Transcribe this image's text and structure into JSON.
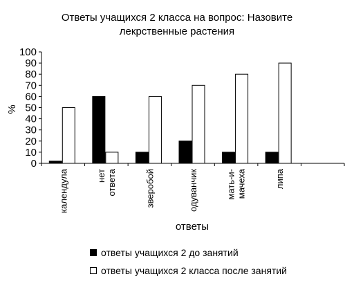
{
  "chart_data": {
    "type": "bar",
    "title": "Ответы учащихся 2 класса на вопрос: Назовите лекрственные растения",
    "title_lines": [
      "Ответы учащихся 2 класса на вопрос: Назовите",
      "лекрственные растения"
    ],
    "xlabel": "ответы",
    "ylabel": "%",
    "ylim": [
      0,
      100
    ],
    "yticks": [
      0,
      10,
      20,
      30,
      40,
      50,
      60,
      70,
      80,
      90,
      100
    ],
    "categories": [
      "календула",
      "нет ответа",
      "зверобой",
      "одуванчик",
      "мать-и-мачеха",
      "липа"
    ],
    "category_label_lines": [
      [
        "календула"
      ],
      [
        "нет",
        "ответа"
      ],
      [
        "зверобой"
      ],
      [
        "одуванчик"
      ],
      [
        "мать-и-",
        "мачеха"
      ],
      [
        "липа"
      ]
    ],
    "series": [
      {
        "name": "ответы учащихся 2 до занятий",
        "color": "#000000",
        "values": [
          2,
          60,
          10,
          20,
          10,
          10
        ]
      },
      {
        "name": "ответы учащихся 2 класса после занятий",
        "color": "#ffffff",
        "values": [
          50,
          10,
          60,
          70,
          80,
          90
        ]
      }
    ],
    "grid": false,
    "legend_position": "bottom"
  }
}
